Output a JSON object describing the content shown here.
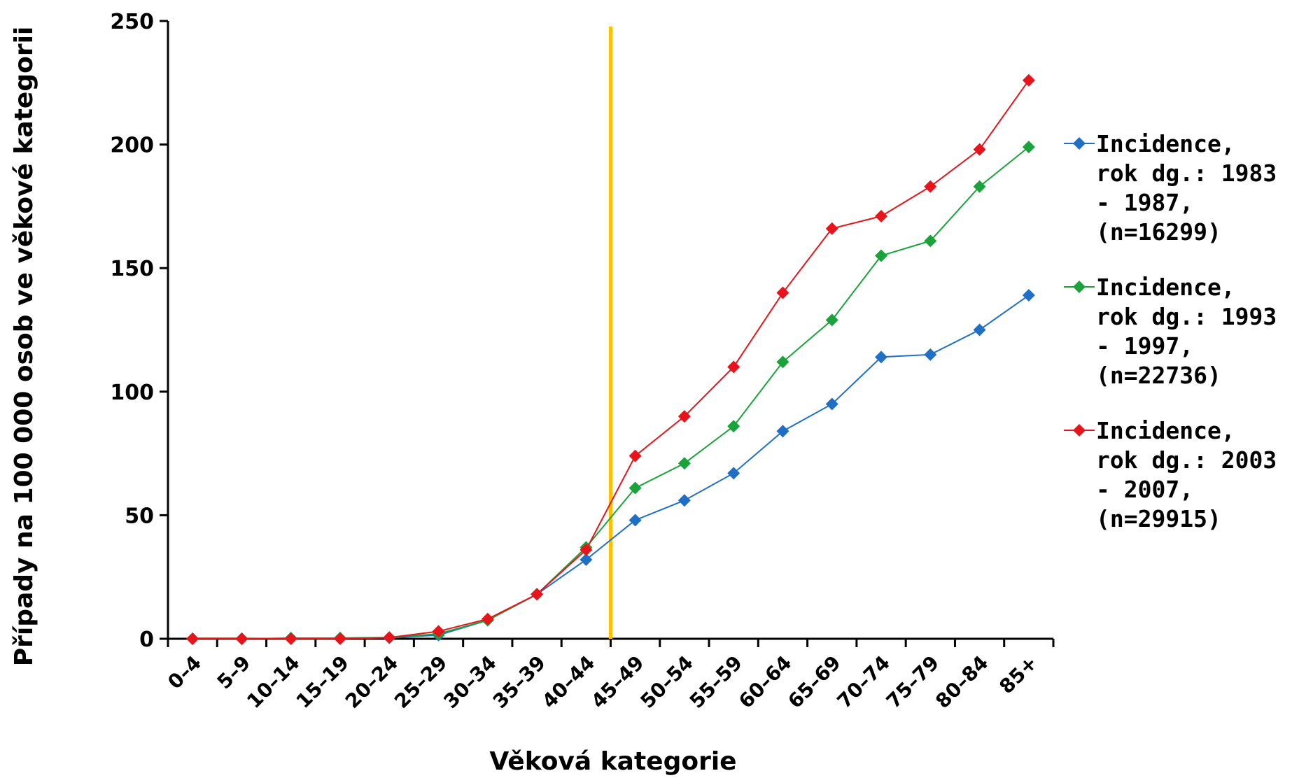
{
  "chart_data": {
    "type": "line",
    "title": "",
    "xlabel": "Věková kategorie",
    "ylabel": "Případy na 100 000 osob ve věkové kategorii",
    "ylim": [
      0,
      250
    ],
    "yticks": [
      0,
      50,
      100,
      150,
      200,
      250
    ],
    "categories": [
      "0–4",
      "5–9",
      "10–14",
      "15–19",
      "20–24",
      "25–29",
      "30–34",
      "35–39",
      "40–44",
      "45–49",
      "50–54",
      "55–59",
      "60–64",
      "65–69",
      "70–74",
      "75–79",
      "80–84",
      "85+"
    ],
    "marker_line_after_category": "40–44",
    "legend_position": "right",
    "series": [
      {
        "name_lines": [
          "Incidence,",
          "rok dg.: 1983",
          "- 1987,",
          "(n=16299)"
        ],
        "color": "#1f6fc5",
        "values": [
          0,
          0,
          0.3,
          0.3,
          0.4,
          1.5,
          7.5,
          18,
          32,
          48,
          56,
          67,
          84,
          95,
          114,
          115,
          125,
          139
        ]
      },
      {
        "name_lines": [
          "Incidence,",
          "rok dg.: 1993",
          "- 1997,",
          "(n=22736)"
        ],
        "color": "#1aa33a",
        "values": [
          0,
          0,
          0.2,
          0.3,
          0.5,
          2,
          7.5,
          18,
          37,
          61,
          71,
          86,
          112,
          129,
          155,
          161,
          183,
          199
        ]
      },
      {
        "name_lines": [
          "Incidence,",
          "rok dg.: 2003",
          "- 2007,",
          "(n=29915)"
        ],
        "color": "#e8141b",
        "values": [
          0,
          0,
          0,
          0,
          0.5,
          3,
          8,
          18,
          36,
          74,
          90,
          110,
          140,
          166,
          171,
          183,
          198,
          226
        ]
      }
    ],
    "colors": {
      "vertical_marker": "#ffc000",
      "axis": "#000000"
    }
  }
}
